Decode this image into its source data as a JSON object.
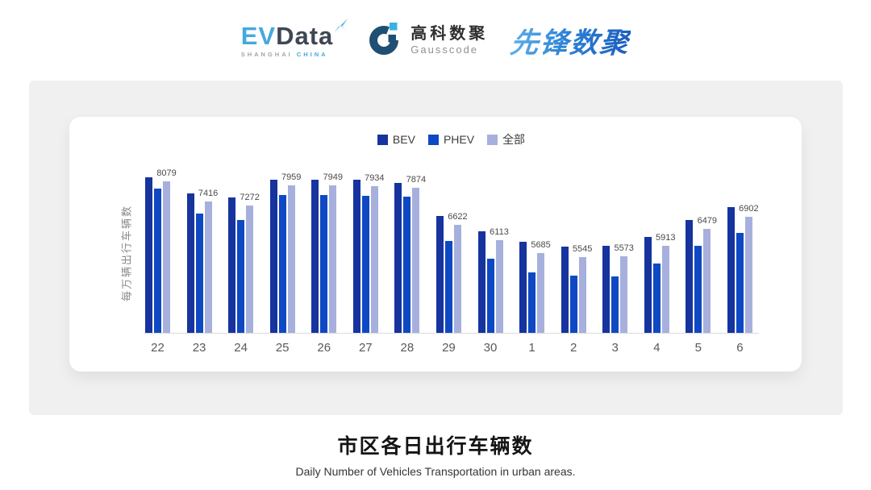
{
  "header": {
    "logos": {
      "evdata": {
        "ev": "EV",
        "data": "Data",
        "sub_left": "SHANGHAI",
        "sub_right": "CHINA"
      },
      "gausscode": {
        "cn": "高科数聚",
        "en": "Gausscode"
      },
      "xianfeng": {
        "text": "先锋数聚"
      }
    }
  },
  "chart_data": {
    "type": "bar",
    "title": "",
    "xlabel": "",
    "ylabel": "每万辆出行车辆数",
    "categories": [
      "22",
      "23",
      "24",
      "25",
      "26",
      "27",
      "28",
      "29",
      "30",
      "1",
      "2",
      "3",
      "4",
      "5",
      "6"
    ],
    "series": [
      {
        "key": "bev",
        "name": "BEV",
        "color": "#16339e",
        "values": [
          8220,
          7690,
          7550,
          8150,
          8150,
          8140,
          8040,
          6920,
          6420,
          6060,
          5900,
          5920,
          6210,
          6780,
          7210
        ]
      },
      {
        "key": "phev",
        "name": "PHEV",
        "color": "#0e49c3",
        "values": [
          7840,
          7000,
          6780,
          7630,
          7630,
          7610,
          7560,
          6080,
          5500,
          5020,
          4920,
          4900,
          5330,
          5920,
          6360
        ]
      },
      {
        "key": "all",
        "name": "全部",
        "color": "#a7b0dc",
        "values": [
          8079,
          7416,
          7272,
          7959,
          7949,
          7934,
          7874,
          6622,
          6113,
          5685,
          5545,
          5573,
          5913,
          6479,
          6902
        ]
      }
    ],
    "labeled_series": "all",
    "value_labels": [
      8079,
      7416,
      7272,
      7959,
      7949,
      7934,
      7874,
      6622,
      6113,
      5685,
      5545,
      5573,
      5913,
      6479,
      6902
    ],
    "ylim": [
      3000,
      8600
    ],
    "grid": false,
    "y_tick_labels_visible": false,
    "legend_position": "top-center"
  },
  "footer": {
    "title": "市区各日出行车辆数",
    "subtitle": "Daily Number of Vehicles Transportation in urban areas."
  }
}
